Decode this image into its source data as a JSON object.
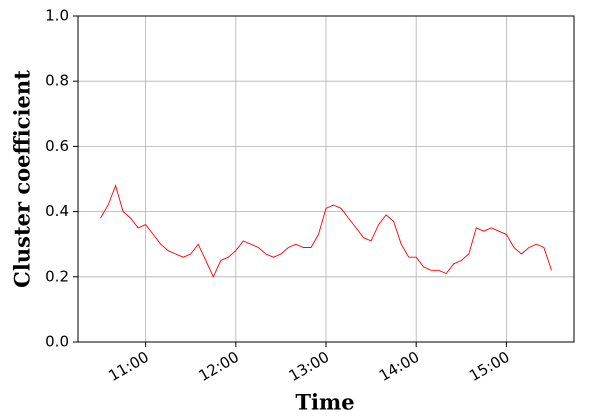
{
  "chart_data": {
    "type": "line",
    "xlabel": "Time",
    "ylabel": "Cluster coefficient",
    "x": [
      "10:30",
      "10:35",
      "10:40",
      "10:45",
      "10:50",
      "10:55",
      "11:00",
      "11:05",
      "11:10",
      "11:15",
      "11:20",
      "11:25",
      "11:30",
      "11:35",
      "11:40",
      "11:45",
      "11:50",
      "11:55",
      "12:00",
      "12:05",
      "12:10",
      "12:15",
      "12:20",
      "12:25",
      "12:30",
      "12:35",
      "12:40",
      "12:45",
      "12:50",
      "12:55",
      "13:00",
      "13:05",
      "13:10",
      "13:15",
      "13:20",
      "13:25",
      "13:30",
      "13:35",
      "13:40",
      "13:45",
      "13:50",
      "13:55",
      "14:00",
      "14:05",
      "14:10",
      "14:15",
      "14:20",
      "14:25",
      "14:30",
      "14:35",
      "14:40",
      "14:45",
      "14:50",
      "14:55",
      "15:00",
      "15:05",
      "15:10",
      "15:15",
      "15:20",
      "15:25",
      "15:30"
    ],
    "values": [
      0.38,
      0.42,
      0.48,
      0.4,
      0.38,
      0.35,
      0.36,
      0.33,
      0.3,
      0.28,
      0.27,
      0.26,
      0.27,
      0.3,
      0.25,
      0.2,
      0.25,
      0.26,
      0.28,
      0.31,
      0.3,
      0.29,
      0.27,
      0.26,
      0.27,
      0.29,
      0.3,
      0.29,
      0.29,
      0.33,
      0.41,
      0.42,
      0.41,
      0.38,
      0.35,
      0.32,
      0.31,
      0.36,
      0.39,
      0.37,
      0.3,
      0.26,
      0.26,
      0.23,
      0.22,
      0.22,
      0.21,
      0.24,
      0.25,
      0.27,
      0.35,
      0.34,
      0.35,
      0.34,
      0.33,
      0.29,
      0.27,
      0.29,
      0.3,
      0.29,
      0.22
    ],
    "color": "#ff0000",
    "xlim": [
      "10:15",
      "15:45"
    ],
    "xticks": [
      "11:00",
      "12:00",
      "13:00",
      "14:00",
      "15:00"
    ],
    "ylim": [
      0,
      1
    ],
    "yticks": [
      {
        "value": 0,
        "label": "0.0"
      },
      0.2,
      0.4,
      0.6,
      0.8,
      {
        "value": 1,
        "label": "1.0"
      }
    ],
    "grid": true
  }
}
